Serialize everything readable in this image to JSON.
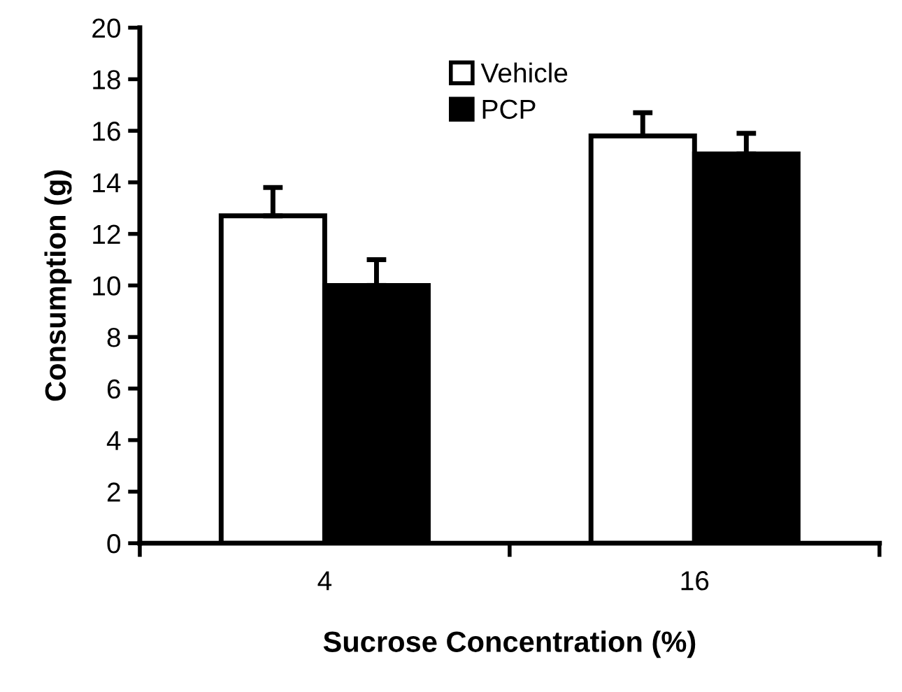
{
  "chart_data": {
    "type": "bar",
    "xlabel": "Sucrose Concentration (%)",
    "ylabel": "Consumption (g)",
    "categories": [
      "4",
      "16"
    ],
    "series": [
      {
        "name": "Vehicle",
        "color": "#ffffff",
        "values": [
          12.7,
          15.8
        ],
        "errors": [
          1.1,
          0.9
        ]
      },
      {
        "name": "PCP",
        "color": "#000000",
        "values": [
          10.0,
          15.1
        ],
        "errors": [
          1.0,
          0.8
        ]
      }
    ],
    "ylim": [
      0,
      20
    ],
    "yticks": [
      0,
      2,
      4,
      6,
      8,
      10,
      12,
      14,
      16,
      18,
      20
    ],
    "grid": false,
    "legend": "top"
  }
}
